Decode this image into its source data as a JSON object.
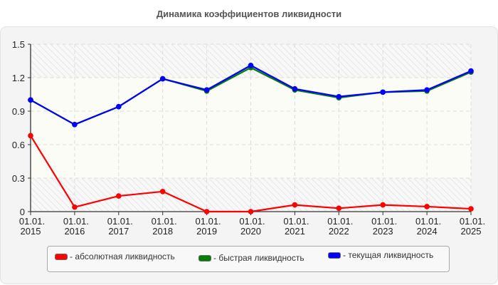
{
  "title": "Динамика коэффициентов ликвидности",
  "legend": [
    {
      "label": "- абсолютная ликвидность",
      "color": "#ff0000"
    },
    {
      "label": "- быстрая ликвидность",
      "color": "#008000"
    },
    {
      "label": "- текущая ликвидность",
      "color": "#0000ff"
    }
  ],
  "chart_data": {
    "type": "line",
    "title": "Динамика коэффициентов ликвидности",
    "xlabel": "",
    "ylabel": "",
    "categories": [
      "01.01.2015",
      "01.01.2016",
      "01.01.2017",
      "01.01.2018",
      "01.01.2019",
      "01.01.2020",
      "01.01.2021",
      "01.01.2022",
      "01.01.2023",
      "01.01.2024",
      "01.01.2025"
    ],
    "x_tick_lines": [
      [
        "01.01.",
        "2015"
      ],
      [
        "01.01.",
        "2016"
      ],
      [
        "01.01.",
        "2017"
      ],
      [
        "01.01.",
        "2018"
      ],
      [
        "01.01.",
        "2019"
      ],
      [
        "01.01.",
        "2020"
      ],
      [
        "01.01.",
        "2021"
      ],
      [
        "01.01.",
        "2022"
      ],
      [
        "01.01.",
        "2023"
      ],
      [
        "01.01.",
        "2024"
      ],
      [
        "01.01.",
        "2025"
      ]
    ],
    "y_ticks": [
      "0",
      "0.3",
      "0.6",
      "0.9",
      "1.2",
      "1.5"
    ],
    "ylim": [
      0,
      1.5
    ],
    "grid": true,
    "legend_position": "bottom",
    "series": [
      {
        "name": "абсолютная ликвидность",
        "color": "#ff0000",
        "values": [
          0.68,
          0.04,
          0.14,
          0.18,
          0.0,
          0.0,
          0.06,
          0.03,
          0.06,
          0.045,
          0.025
        ]
      },
      {
        "name": "быстрая ликвидность",
        "color": "#008000",
        "values": [
          1.0,
          0.78,
          0.94,
          1.19,
          1.08,
          1.29,
          1.09,
          1.02,
          1.07,
          1.08,
          1.25
        ]
      },
      {
        "name": "текущая ликвидность",
        "color": "#0000ff",
        "values": [
          1.0,
          0.78,
          0.94,
          1.19,
          1.09,
          1.31,
          1.1,
          1.03,
          1.07,
          1.09,
          1.26
        ]
      }
    ],
    "bands": [
      {
        "from": 0,
        "to": 0.3,
        "style": "hatched"
      },
      {
        "from": 0.3,
        "to": 1.2,
        "style": "ivory"
      },
      {
        "from": 1.2,
        "to": 1.5,
        "style": "hatched"
      }
    ]
  }
}
